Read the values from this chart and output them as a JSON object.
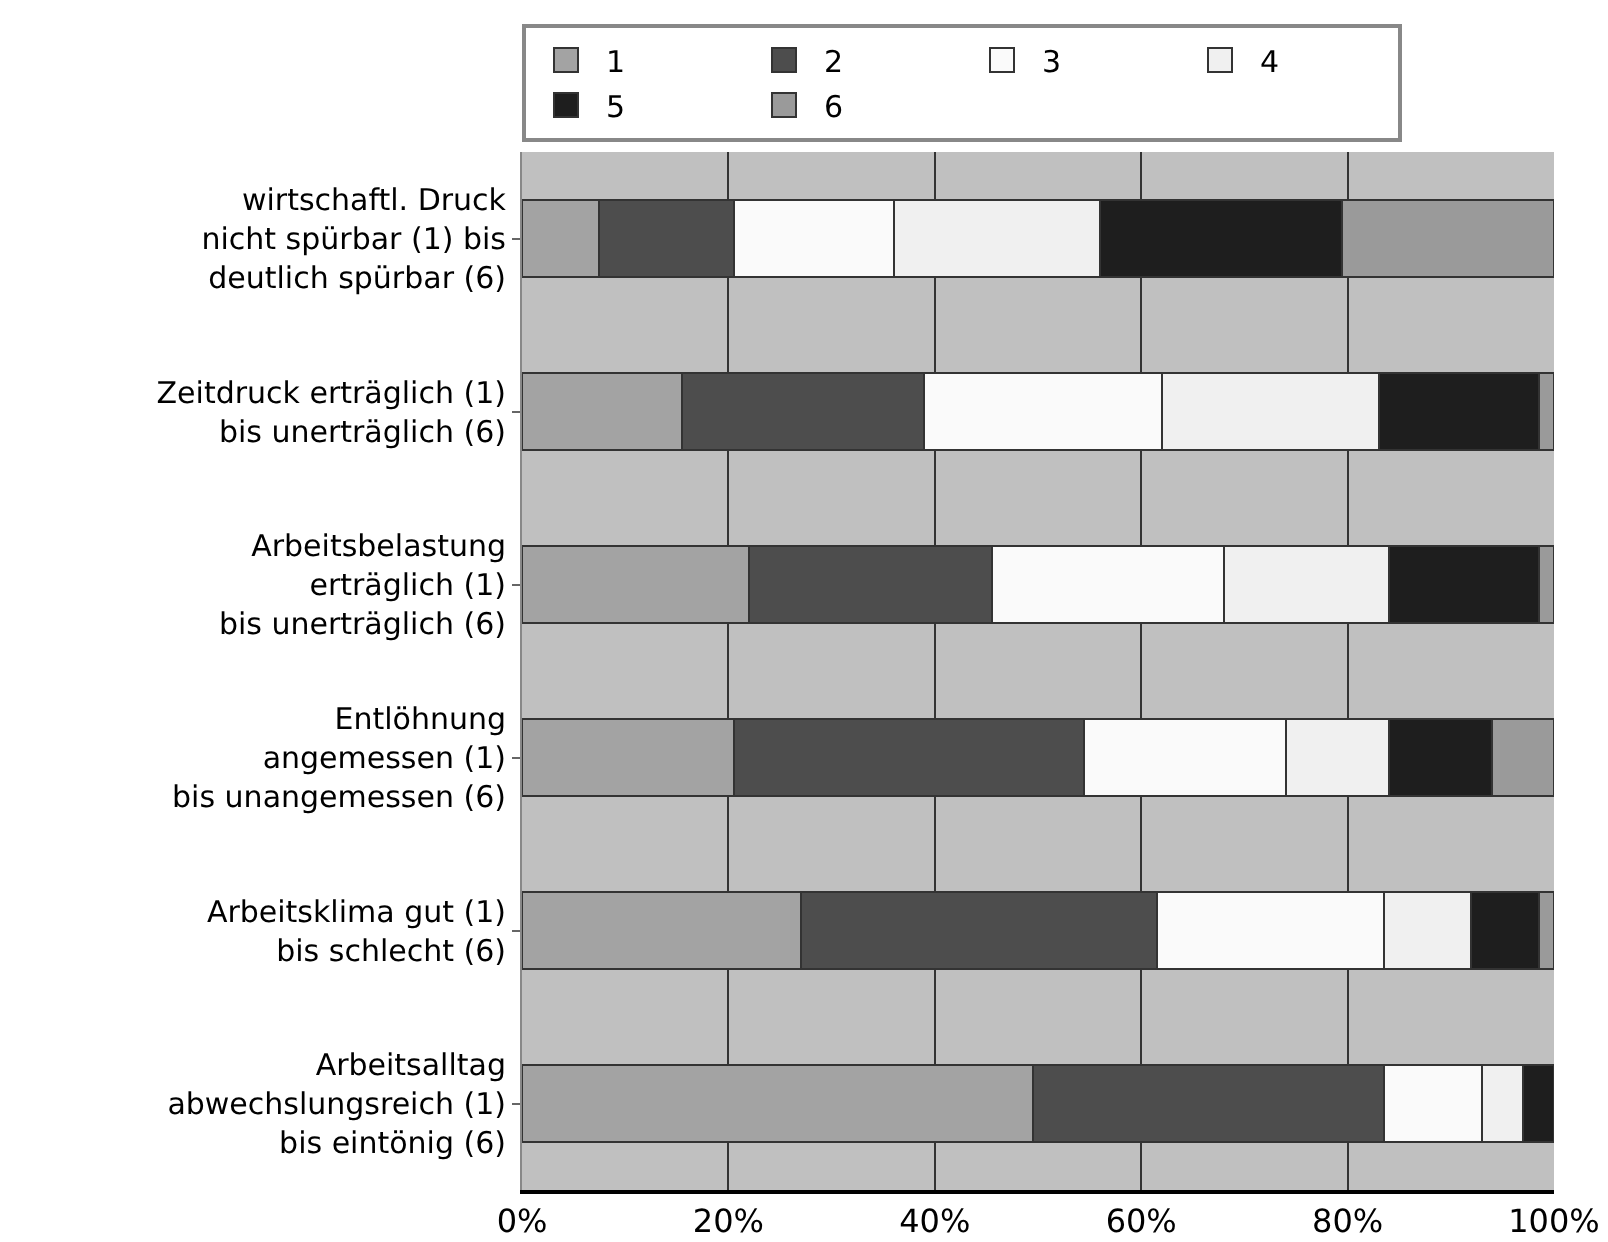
{
  "chart_data": {
    "type": "bar",
    "orientation": "horizontal",
    "stacked": true,
    "categories": [
      "wirtschaftl. Druck\nnicht spürbar (1) bis\ndeutlich spürbar (6)",
      "Zeitdruck erträglich (1)\nbis unerträglich (6)",
      "Arbeitsbelastung\nerträglich (1)\nbis unerträglich (6)",
      "Entlöhnung\nangemessen (1)\nbis unangemessen (6)",
      "Arbeitsklima gut (1)\nbis schlecht (6)",
      "Arbeitsalltag\nabwechslungsreich (1)\nbis eintönig (6)"
    ],
    "series": [
      {
        "name": "1",
        "color": "#a3a3a3",
        "values": [
          7.5,
          15.5,
          22,
          20.5,
          27,
          49.5
        ]
      },
      {
        "name": "2",
        "color": "#4d4d4d",
        "values": [
          13,
          23.5,
          23.5,
          34,
          34.5,
          34
        ]
      },
      {
        "name": "3",
        "color": "#fafafa",
        "values": [
          15.5,
          23,
          22.5,
          19.5,
          22,
          9.5
        ]
      },
      {
        "name": "4",
        "color": "#f0f0f0",
        "values": [
          20,
          21,
          16,
          10,
          8.5,
          4
        ]
      },
      {
        "name": "5",
        "color": "#1e1e1e",
        "values": [
          23.5,
          15.5,
          14.5,
          10,
          6.5,
          3
        ]
      },
      {
        "name": "6",
        "color": "#9a9a9a",
        "values": [
          20.5,
          1.5,
          1.5,
          6,
          1.5,
          null
        ]
      }
    ],
    "xlim": [
      0,
      100
    ],
    "xticks": [
      {
        "value": 0,
        "label": "0%"
      },
      {
        "value": 20,
        "label": "20%"
      },
      {
        "value": 40,
        "label": "40%"
      },
      {
        "value": 60,
        "label": "60%"
      },
      {
        "value": 80,
        "label": "80%"
      },
      {
        "value": 100,
        "label": "100%"
      }
    ],
    "grid": "x",
    "legend": "top"
  }
}
